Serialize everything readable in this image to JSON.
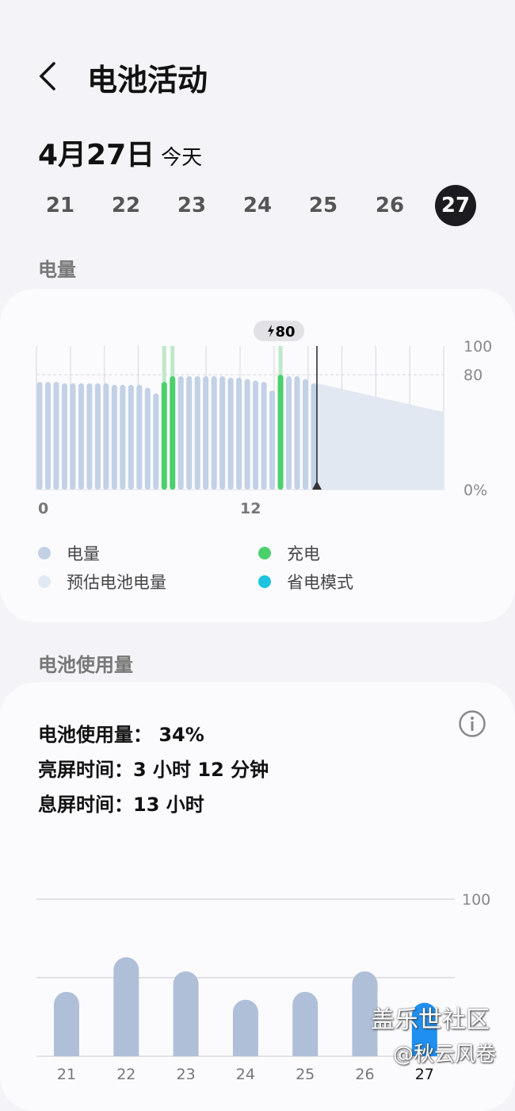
{
  "header": {
    "title": "电池活动",
    "back_icon": "chevron-left-icon"
  },
  "date": {
    "label": "4月27日",
    "today": "今天"
  },
  "days": [
    {
      "label": "21"
    },
    {
      "label": "22"
    },
    {
      "label": "23"
    },
    {
      "label": "24"
    },
    {
      "label": "25"
    },
    {
      "label": "26"
    },
    {
      "label": "27",
      "selected": true
    }
  ],
  "level_section": {
    "title": "电量"
  },
  "legend": {
    "level": "电量",
    "charging": "充电",
    "estimated": "预估电池电量",
    "power_saving": "省电模式"
  },
  "colors": {
    "level": "#c3d1e6",
    "charging": "#4cd06b",
    "estimated": "#e2e8f1",
    "power_saving": "#1ec3e0",
    "usage_bar": "#b0bfd8",
    "usage_selected": "#1f8ff0"
  },
  "chart_data": [
    {
      "type": "bar",
      "title": "",
      "y_ticks": [
        "100",
        "80",
        "0%"
      ],
      "x_ticks": [
        "0",
        "12"
      ],
      "ylim": [
        0,
        100
      ],
      "x_unit": "hour",
      "marker": {
        "label": "80",
        "icon": "lightning-icon"
      },
      "values": [
        75,
        75,
        75,
        74,
        74,
        74,
        74,
        74,
        74,
        73,
        73,
        73,
        73,
        71,
        67,
        75,
        79,
        79,
        79,
        79,
        79,
        79,
        79,
        78,
        78,
        77,
        76,
        75,
        69,
        80,
        79,
        79,
        77,
        74
      ],
      "charging": [
        false,
        false,
        false,
        false,
        false,
        false,
        false,
        false,
        false,
        false,
        false,
        false,
        false,
        false,
        false,
        true,
        true,
        false,
        false,
        false,
        false,
        false,
        false,
        false,
        false,
        false,
        false,
        false,
        false,
        true,
        false,
        false,
        false,
        false
      ],
      "estimated": {
        "from": 74,
        "to": 54
      }
    },
    {
      "type": "bar",
      "title": "",
      "categories": [
        "21",
        "22",
        "23",
        "24",
        "25",
        "26",
        "27"
      ],
      "values": [
        41,
        63,
        54,
        36,
        41,
        54,
        34
      ],
      "ylim": [
        0,
        100
      ],
      "y_ticks": [
        "100"
      ],
      "selected": "27"
    }
  ],
  "usage_section": {
    "title": "电池使用量"
  },
  "usage": {
    "usage_label": "电池使用量：",
    "usage_value": "34%",
    "screen_on_label": "亮屏时间：",
    "screen_on_value": "3 小时 12 分钟",
    "screen_off_label": "息屏时间：",
    "screen_off_value": "13 小时",
    "info_icon": "info-icon"
  },
  "watermark": {
    "line1": "盖乐世社区",
    "line2": "@秋云风卷"
  }
}
